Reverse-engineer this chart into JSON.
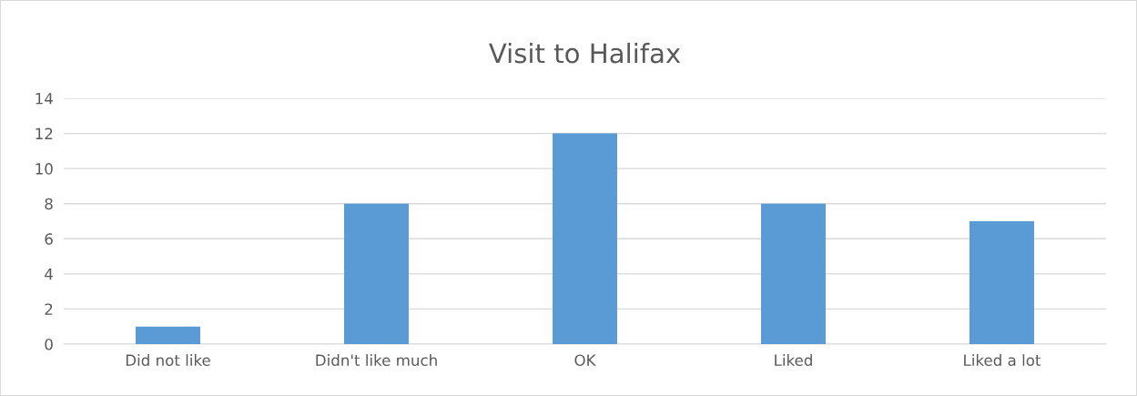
{
  "chart_data": {
    "type": "bar",
    "title": "Visit to Halifax",
    "categories": [
      "Did not like",
      "Didn't like much",
      "OK",
      "Liked",
      "Liked a lot"
    ],
    "values": [
      1,
      8,
      12,
      8,
      7
    ],
    "color": "#5b9bd5",
    "ylim": [
      0,
      14
    ],
    "yticks": [
      0,
      2,
      4,
      6,
      8,
      10,
      12,
      14
    ],
    "grid": "y",
    "legend": false
  }
}
